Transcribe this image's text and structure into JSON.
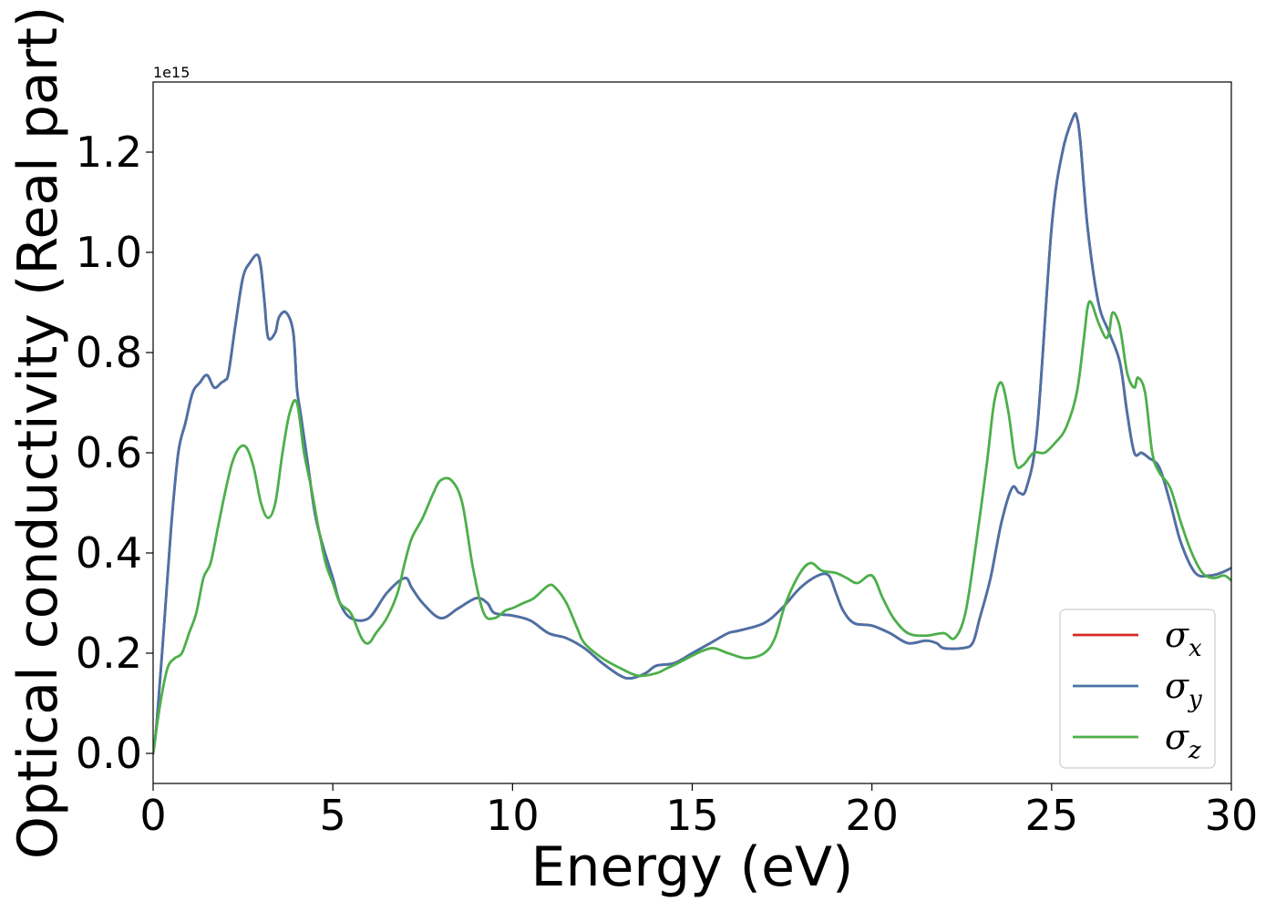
{
  "chart_data": {
    "type": "line",
    "title": "",
    "xlabel": "Energy (eV)",
    "ylabel": "Optical conductivity (Real part)",
    "y_offset_text": "1e15",
    "xlim": [
      0,
      30
    ],
    "ylim": [
      -0.06,
      1.34
    ],
    "xticks": [
      0,
      5,
      10,
      15,
      20,
      25,
      30
    ],
    "xtick_labels": [
      "0",
      "5",
      "10",
      "15",
      "20",
      "25",
      "30"
    ],
    "yticks": [
      0.0,
      0.2,
      0.4,
      0.6,
      0.8,
      1.0,
      1.2
    ],
    "ytick_labels": [
      "0.0",
      "0.2",
      "0.4",
      "0.6",
      "0.8",
      "1.0",
      "1.2"
    ],
    "grid": false,
    "legend_position": "lower-right",
    "series": [
      {
        "name": "σx",
        "symbol": "σ",
        "subscript": "x",
        "color": "#d62728",
        "x": [
          0,
          0.1,
          0.3,
          0.5,
          0.7,
          0.9,
          1.1,
          1.3,
          1.5,
          1.7,
          1.9,
          2.0,
          2.1,
          2.3,
          2.5,
          2.7,
          2.9,
          3.0,
          3.1,
          3.2,
          3.4,
          3.5,
          3.7,
          3.9,
          4.0,
          4.1,
          4.3,
          4.5,
          4.7,
          5.0,
          5.2,
          5.5,
          6.0,
          6.5,
          7.0,
          7.2,
          7.5,
          8.0,
          8.5,
          9.0,
          9.3,
          9.5,
          10.0,
          10.5,
          11.0,
          11.5,
          12.0,
          12.5,
          13.0,
          13.3,
          13.7,
          14.0,
          14.5,
          15.0,
          15.5,
          16.0,
          16.3,
          17.0,
          17.5,
          18.0,
          18.5,
          18.8,
          19.0,
          19.2,
          19.5,
          20.0,
          20.5,
          21.0,
          21.5,
          21.8,
          22.0,
          22.5,
          22.8,
          23.0,
          23.3,
          23.6,
          23.9,
          24.1,
          24.3,
          24.6,
          25.0,
          25.3,
          25.6,
          25.7,
          25.8,
          26.0,
          26.3,
          26.6,
          26.9,
          27.1,
          27.3,
          27.5,
          27.7,
          28.0,
          28.3,
          28.6,
          29.0,
          29.4,
          29.7,
          30.0
        ],
        "values": [
          0.0,
          0.06,
          0.25,
          0.45,
          0.6,
          0.66,
          0.72,
          0.74,
          0.755,
          0.73,
          0.74,
          0.745,
          0.76,
          0.86,
          0.95,
          0.98,
          0.995,
          0.97,
          0.9,
          0.83,
          0.84,
          0.87,
          0.88,
          0.84,
          0.73,
          0.68,
          0.58,
          0.48,
          0.42,
          0.35,
          0.3,
          0.27,
          0.27,
          0.32,
          0.35,
          0.33,
          0.3,
          0.27,
          0.29,
          0.31,
          0.3,
          0.28,
          0.275,
          0.265,
          0.24,
          0.23,
          0.21,
          0.18,
          0.155,
          0.15,
          0.16,
          0.175,
          0.18,
          0.2,
          0.22,
          0.24,
          0.245,
          0.26,
          0.29,
          0.33,
          0.355,
          0.355,
          0.32,
          0.285,
          0.26,
          0.255,
          0.24,
          0.22,
          0.225,
          0.22,
          0.21,
          0.21,
          0.22,
          0.27,
          0.35,
          0.46,
          0.53,
          0.52,
          0.53,
          0.65,
          1.05,
          1.2,
          1.27,
          1.27,
          1.22,
          1.05,
          0.9,
          0.84,
          0.78,
          0.68,
          0.6,
          0.6,
          0.59,
          0.57,
          0.5,
          0.42,
          0.36,
          0.355,
          0.36,
          0.37
        ]
      },
      {
        "name": "σy",
        "symbol": "σ",
        "subscript": "y",
        "color": "#4a72a8",
        "x": [
          0,
          0.1,
          0.3,
          0.5,
          0.7,
          0.9,
          1.1,
          1.3,
          1.5,
          1.7,
          1.9,
          2.0,
          2.1,
          2.3,
          2.5,
          2.7,
          2.9,
          3.0,
          3.1,
          3.2,
          3.4,
          3.5,
          3.7,
          3.9,
          4.0,
          4.1,
          4.3,
          4.5,
          4.7,
          5.0,
          5.2,
          5.5,
          6.0,
          6.5,
          7.0,
          7.2,
          7.5,
          8.0,
          8.5,
          9.0,
          9.3,
          9.5,
          10.0,
          10.5,
          11.0,
          11.5,
          12.0,
          12.5,
          13.0,
          13.3,
          13.7,
          14.0,
          14.5,
          15.0,
          15.5,
          16.0,
          16.3,
          17.0,
          17.5,
          18.0,
          18.5,
          18.8,
          19.0,
          19.2,
          19.5,
          20.0,
          20.5,
          21.0,
          21.5,
          21.8,
          22.0,
          22.5,
          22.8,
          23.0,
          23.3,
          23.6,
          23.9,
          24.1,
          24.3,
          24.6,
          25.0,
          25.3,
          25.6,
          25.7,
          25.8,
          26.0,
          26.3,
          26.6,
          26.9,
          27.1,
          27.3,
          27.5,
          27.7,
          28.0,
          28.3,
          28.6,
          29.0,
          29.4,
          29.7,
          30.0
        ],
        "values": [
          0.0,
          0.06,
          0.25,
          0.45,
          0.6,
          0.66,
          0.72,
          0.74,
          0.755,
          0.73,
          0.74,
          0.745,
          0.76,
          0.86,
          0.95,
          0.98,
          0.995,
          0.97,
          0.9,
          0.83,
          0.84,
          0.87,
          0.88,
          0.84,
          0.73,
          0.68,
          0.58,
          0.48,
          0.42,
          0.35,
          0.3,
          0.27,
          0.27,
          0.32,
          0.35,
          0.33,
          0.3,
          0.27,
          0.29,
          0.31,
          0.3,
          0.28,
          0.275,
          0.265,
          0.24,
          0.23,
          0.21,
          0.18,
          0.155,
          0.15,
          0.16,
          0.175,
          0.18,
          0.2,
          0.22,
          0.24,
          0.245,
          0.26,
          0.29,
          0.33,
          0.355,
          0.355,
          0.32,
          0.285,
          0.26,
          0.255,
          0.24,
          0.22,
          0.225,
          0.22,
          0.21,
          0.21,
          0.22,
          0.27,
          0.35,
          0.46,
          0.53,
          0.52,
          0.53,
          0.65,
          1.05,
          1.2,
          1.27,
          1.27,
          1.22,
          1.05,
          0.9,
          0.84,
          0.78,
          0.68,
          0.6,
          0.6,
          0.59,
          0.57,
          0.5,
          0.42,
          0.36,
          0.355,
          0.36,
          0.37
        ]
      },
      {
        "name": "σz",
        "symbol": "σ",
        "subscript": "z",
        "color": "#4daf4a",
        "x": [
          0,
          0.2,
          0.4,
          0.6,
          0.8,
          1.0,
          1.2,
          1.4,
          1.6,
          1.8,
          2.0,
          2.2,
          2.4,
          2.6,
          2.8,
          3.0,
          3.2,
          3.4,
          3.6,
          3.8,
          4.0,
          4.2,
          4.4,
          4.6,
          4.8,
          5.0,
          5.2,
          5.5,
          5.8,
          6.0,
          6.2,
          6.5,
          6.8,
          7.0,
          7.2,
          7.5,
          7.8,
          8.0,
          8.3,
          8.6,
          8.9,
          9.2,
          9.5,
          9.8,
          10.0,
          10.3,
          10.6,
          11.0,
          11.2,
          11.5,
          11.8,
          12.0,
          12.5,
          13.0,
          13.5,
          14.0,
          14.3,
          14.6,
          15.0,
          15.3,
          15.6,
          16.0,
          16.5,
          17.0,
          17.3,
          17.6,
          18.0,
          18.3,
          18.6,
          19.0,
          19.3,
          19.6,
          20.0,
          20.3,
          20.6,
          21.0,
          21.5,
          22.0,
          22.3,
          22.6,
          22.9,
          23.2,
          23.4,
          23.6,
          23.8,
          24.0,
          24.2,
          24.5,
          24.8,
          25.1,
          25.4,
          25.7,
          25.9,
          26.0,
          26.1,
          26.3,
          26.5,
          26.6,
          26.7,
          26.9,
          27.1,
          27.3,
          27.4,
          27.6,
          27.8,
          28.0,
          28.3,
          28.6,
          28.9,
          29.2,
          29.5,
          29.8,
          30.0
        ],
        "values": [
          0.0,
          0.1,
          0.17,
          0.19,
          0.2,
          0.24,
          0.28,
          0.35,
          0.38,
          0.45,
          0.52,
          0.58,
          0.61,
          0.61,
          0.57,
          0.5,
          0.47,
          0.5,
          0.6,
          0.68,
          0.7,
          0.6,
          0.53,
          0.45,
          0.38,
          0.34,
          0.3,
          0.28,
          0.23,
          0.22,
          0.24,
          0.27,
          0.32,
          0.38,
          0.43,
          0.47,
          0.52,
          0.545,
          0.545,
          0.5,
          0.37,
          0.28,
          0.27,
          0.285,
          0.29,
          0.3,
          0.31,
          0.335,
          0.33,
          0.3,
          0.25,
          0.22,
          0.19,
          0.17,
          0.155,
          0.16,
          0.17,
          0.18,
          0.195,
          0.205,
          0.21,
          0.2,
          0.19,
          0.2,
          0.23,
          0.3,
          0.36,
          0.38,
          0.365,
          0.36,
          0.35,
          0.34,
          0.355,
          0.31,
          0.27,
          0.24,
          0.235,
          0.24,
          0.23,
          0.28,
          0.42,
          0.58,
          0.7,
          0.74,
          0.68,
          0.58,
          0.575,
          0.6,
          0.6,
          0.62,
          0.65,
          0.72,
          0.83,
          0.89,
          0.9,
          0.86,
          0.83,
          0.84,
          0.88,
          0.85,
          0.76,
          0.73,
          0.75,
          0.72,
          0.6,
          0.56,
          0.53,
          0.46,
          0.4,
          0.36,
          0.35,
          0.355,
          0.345
        ]
      }
    ]
  }
}
